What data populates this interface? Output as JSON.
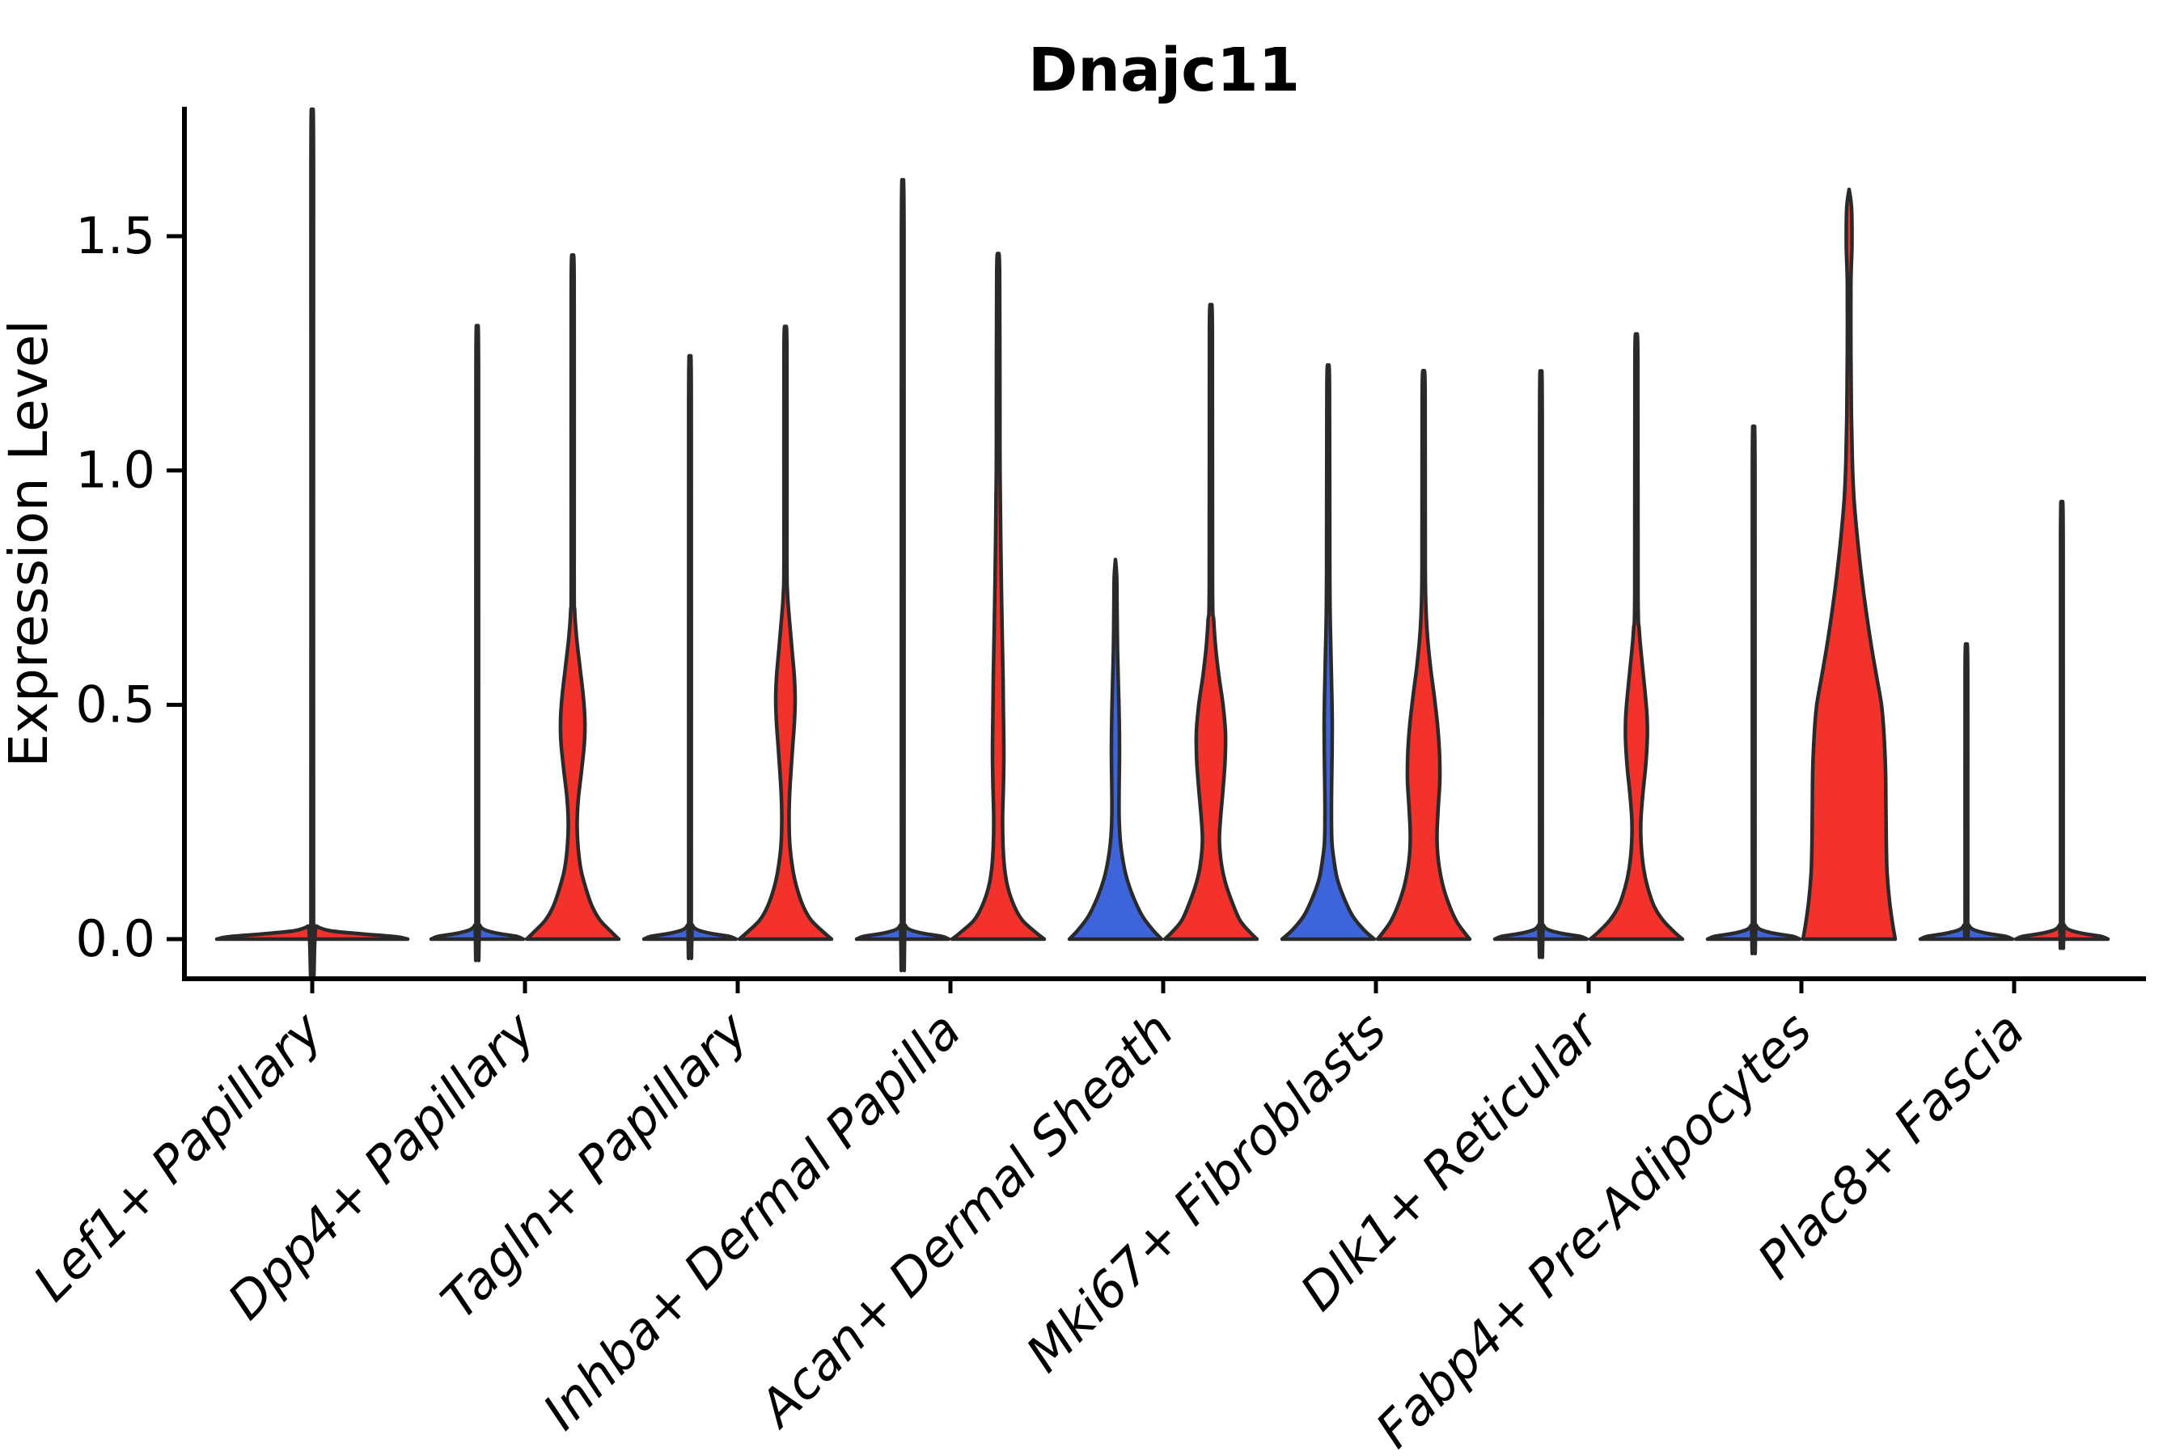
{
  "title": "Dnajc11",
  "ylabel": "Expression Level",
  "chart_data": {
    "type": "violin",
    "title": "Dnajc11",
    "xlabel": "",
    "ylabel": "Expression Level",
    "ylim": [
      0,
      1.75
    ],
    "grid": false,
    "legend": "none",
    "ytick_labels": [
      "0.0",
      "0.5",
      "1.0",
      "1.5"
    ],
    "ytick_values": [
      0,
      0.5,
      1.0,
      1.5
    ],
    "categories": [
      "Lef1+ Papillary",
      "Dpp4+ Papillary",
      "Tagln+ Papillary",
      "Inhba+ Dermal Papilla",
      "Acan+ Dermal Sheath",
      "Mki67+ Fibroblasts",
      "Dlk1+ Reticular",
      "Fabp4+ Pre-Adipocytes",
      "Plac8+ Fascia"
    ],
    "colors": {
      "red": "#F2322B",
      "blue": "#3D64DB",
      "outline": "#2a2a2a"
    },
    "violins": [
      {
        "category_index": 0,
        "category": "Lef1+ Papillary",
        "side": "single",
        "color": "red",
        "max_expression": 1.68,
        "profile": [
          [
            0,
            118
          ],
          [
            0.005,
            104
          ],
          [
            0.011,
            62
          ],
          [
            0.018,
            22
          ],
          [
            0.028,
            5
          ],
          [
            0.042,
            1.6
          ],
          [
            1.64,
            1.6
          ],
          [
            1.68,
            0
          ]
        ]
      },
      {
        "category_index": 1,
        "category": "Dpp4+ Papillary",
        "side": "left",
        "color": "blue",
        "max_expression": 1.25,
        "profile": [
          [
            0,
            57
          ],
          [
            0.006,
            48
          ],
          [
            0.012,
            26
          ],
          [
            0.02,
            9
          ],
          [
            0.03,
            3
          ],
          [
            0.045,
            1.6
          ],
          [
            1.21,
            1.6
          ],
          [
            1.25,
            0
          ]
        ]
      },
      {
        "category_index": 1,
        "category": "Dpp4+ Papillary",
        "side": "right",
        "color": "red",
        "max_expression": 1.44,
        "profile": [
          [
            0,
            57
          ],
          [
            0.015,
            48
          ],
          [
            0.04,
            34
          ],
          [
            0.07,
            24
          ],
          [
            0.11,
            16
          ],
          [
            0.15,
            10
          ],
          [
            0.2,
            6.5
          ],
          [
            0.25,
            5.5
          ],
          [
            0.3,
            7
          ],
          [
            0.36,
            11
          ],
          [
            0.42,
            14.5
          ],
          [
            0.47,
            15
          ],
          [
            0.52,
            13
          ],
          [
            0.58,
            9
          ],
          [
            0.64,
            5
          ],
          [
            0.7,
            2.5
          ],
          [
            0.78,
            1.8
          ],
          [
            1.4,
            1.8
          ],
          [
            1.44,
            0
          ]
        ]
      },
      {
        "category_index": 2,
        "category": "Tagln+ Papillary",
        "side": "left",
        "color": "blue",
        "max_expression": 1.19,
        "profile": [
          [
            0,
            57
          ],
          [
            0.006,
            48
          ],
          [
            0.012,
            26
          ],
          [
            0.02,
            9
          ],
          [
            0.03,
            3
          ],
          [
            0.045,
            1.6
          ],
          [
            1.15,
            1.6
          ],
          [
            1.19,
            0
          ]
        ]
      },
      {
        "category_index": 2,
        "category": "Tagln+ Papillary",
        "side": "right",
        "color": "red",
        "max_expression": 1.3,
        "profile": [
          [
            0,
            57
          ],
          [
            0.015,
            47
          ],
          [
            0.04,
            32
          ],
          [
            0.07,
            22
          ],
          [
            0.11,
            14
          ],
          [
            0.15,
            9
          ],
          [
            0.2,
            5.5
          ],
          [
            0.26,
            4.5
          ],
          [
            0.32,
            5.5
          ],
          [
            0.4,
            8.5
          ],
          [
            0.46,
            11
          ],
          [
            0.51,
            12
          ],
          [
            0.56,
            11
          ],
          [
            0.62,
            8
          ],
          [
            0.68,
            5
          ],
          [
            0.74,
            2.5
          ],
          [
            0.82,
            1.8
          ],
          [
            1.26,
            1.8
          ],
          [
            1.3,
            0
          ]
        ]
      },
      {
        "category_index": 3,
        "category": "Inhba+ Dermal Papilla",
        "side": "left",
        "color": "blue",
        "max_expression": 1.54,
        "profile": [
          [
            0,
            57
          ],
          [
            0.006,
            48
          ],
          [
            0.012,
            26
          ],
          [
            0.02,
            9
          ],
          [
            0.03,
            3
          ],
          [
            0.045,
            1.6
          ],
          [
            1.5,
            1.6
          ],
          [
            1.54,
            0
          ]
        ]
      },
      {
        "category_index": 3,
        "category": "Inhba+ Dermal Papilla",
        "side": "right",
        "color": "red",
        "max_expression": 1.46,
        "profile": [
          [
            0,
            57
          ],
          [
            0.015,
            46
          ],
          [
            0.04,
            30
          ],
          [
            0.07,
            20
          ],
          [
            0.11,
            12
          ],
          [
            0.15,
            8
          ],
          [
            0.2,
            6
          ],
          [
            0.26,
            5.5
          ],
          [
            0.33,
            6.5
          ],
          [
            0.4,
            7
          ],
          [
            0.48,
            6.5
          ],
          [
            0.56,
            6
          ],
          [
            0.65,
            5
          ],
          [
            0.75,
            4
          ],
          [
            0.85,
            3.2
          ],
          [
            0.95,
            2.6
          ],
          [
            1.05,
            2.2
          ],
          [
            1.42,
            1.8
          ],
          [
            1.46,
            0
          ]
        ]
      },
      {
        "category_index": 4,
        "category": "Acan+ Dermal Sheath",
        "side": "left",
        "color": "blue",
        "max_expression": 0.81,
        "profile": [
          [
            0,
            57
          ],
          [
            0.02,
            46
          ],
          [
            0.05,
            33
          ],
          [
            0.09,
            22
          ],
          [
            0.13,
            14
          ],
          [
            0.17,
            9
          ],
          [
            0.21,
            6
          ],
          [
            0.26,
            4.5
          ],
          [
            0.32,
            4.5
          ],
          [
            0.4,
            5
          ],
          [
            0.48,
            4.5
          ],
          [
            0.55,
            3.5
          ],
          [
            0.62,
            2.5
          ],
          [
            0.7,
            2
          ],
          [
            0.77,
            1.6
          ],
          [
            0.81,
            0
          ]
        ]
      },
      {
        "category_index": 4,
        "category": "Acan+ Dermal Sheath",
        "side": "right",
        "color": "red",
        "max_expression": 1.34,
        "profile": [
          [
            0,
            57
          ],
          [
            0.015,
            48
          ],
          [
            0.04,
            36
          ],
          [
            0.08,
            26
          ],
          [
            0.12,
            18
          ],
          [
            0.16,
            13
          ],
          [
            0.21,
            10.5
          ],
          [
            0.26,
            12
          ],
          [
            0.32,
            15
          ],
          [
            0.38,
            17.5
          ],
          [
            0.44,
            18
          ],
          [
            0.5,
            15
          ],
          [
            0.56,
            10
          ],
          [
            0.62,
            6
          ],
          [
            0.68,
            3.5
          ],
          [
            0.76,
            2
          ],
          [
            1.3,
            1.8
          ],
          [
            1.34,
            0
          ]
        ]
      },
      {
        "category_index": 5,
        "category": "Mki67+ Fibroblasts",
        "side": "left",
        "color": "blue",
        "max_expression": 1.22,
        "profile": [
          [
            0,
            57
          ],
          [
            0.02,
            44
          ],
          [
            0.05,
            30
          ],
          [
            0.09,
            19
          ],
          [
            0.13,
            11
          ],
          [
            0.17,
            7
          ],
          [
            0.21,
            4.5
          ],
          [
            0.28,
            4
          ],
          [
            0.36,
            4.5
          ],
          [
            0.45,
            5
          ],
          [
            0.52,
            4.5
          ],
          [
            0.6,
            3.5
          ],
          [
            0.68,
            2.5
          ],
          [
            0.78,
            2
          ],
          [
            1.18,
            1.6
          ],
          [
            1.22,
            0
          ]
        ]
      },
      {
        "category_index": 5,
        "category": "Mki67+ Fibroblasts",
        "side": "right",
        "color": "red",
        "max_expression": 1.21,
        "profile": [
          [
            0,
            57
          ],
          [
            0.015,
            50
          ],
          [
            0.04,
            40
          ],
          [
            0.08,
            30
          ],
          [
            0.12,
            23
          ],
          [
            0.17,
            18
          ],
          [
            0.22,
            16.5
          ],
          [
            0.28,
            18
          ],
          [
            0.34,
            20
          ],
          [
            0.4,
            19.5
          ],
          [
            0.46,
            17
          ],
          [
            0.52,
            13
          ],
          [
            0.58,
            8.5
          ],
          [
            0.64,
            5
          ],
          [
            0.7,
            3
          ],
          [
            0.8,
            2
          ],
          [
            1.17,
            1.8
          ],
          [
            1.21,
            0
          ]
        ]
      },
      {
        "category_index": 6,
        "category": "Dlk1+ Reticular",
        "side": "left",
        "color": "blue",
        "max_expression": 1.16,
        "profile": [
          [
            0,
            57
          ],
          [
            0.006,
            48
          ],
          [
            0.012,
            26
          ],
          [
            0.02,
            9
          ],
          [
            0.03,
            3
          ],
          [
            0.045,
            1.6
          ],
          [
            1.12,
            1.6
          ],
          [
            1.16,
            0
          ]
        ]
      },
      {
        "category_index": 6,
        "category": "Dlk1+ Reticular",
        "side": "right",
        "color": "red",
        "max_expression": 1.28,
        "profile": [
          [
            0,
            57
          ],
          [
            0.015,
            47
          ],
          [
            0.04,
            33
          ],
          [
            0.07,
            22
          ],
          [
            0.11,
            14
          ],
          [
            0.15,
            9
          ],
          [
            0.2,
            6
          ],
          [
            0.25,
            5.5
          ],
          [
            0.31,
            8
          ],
          [
            0.37,
            11.5
          ],
          [
            0.43,
            13.5
          ],
          [
            0.48,
            13
          ],
          [
            0.54,
            10
          ],
          [
            0.6,
            6.5
          ],
          [
            0.66,
            3.5
          ],
          [
            0.74,
            2
          ],
          [
            1.24,
            1.8
          ],
          [
            1.28,
            0
          ]
        ]
      },
      {
        "category_index": 7,
        "category": "Fabp4+ Pre-Adipocytes",
        "side": "left",
        "color": "blue",
        "max_expression": 1.05,
        "profile": [
          [
            0,
            57
          ],
          [
            0.006,
            48
          ],
          [
            0.012,
            26
          ],
          [
            0.02,
            9
          ],
          [
            0.03,
            3
          ],
          [
            0.045,
            1.6
          ],
          [
            1.01,
            1.6
          ],
          [
            1.05,
            0
          ]
        ]
      },
      {
        "category_index": 7,
        "category": "Fabp4+ Pre-Adipocytes",
        "side": "right",
        "color": "red",
        "max_expression": 1.6,
        "profile": [
          [
            0,
            57
          ],
          [
            0.03,
            54
          ],
          [
            0.08,
            50
          ],
          [
            0.14,
            47
          ],
          [
            0.2,
            46
          ],
          [
            0.28,
            45.5
          ],
          [
            0.36,
            45
          ],
          [
            0.44,
            43
          ],
          [
            0.5,
            40
          ],
          [
            0.56,
            34
          ],
          [
            0.62,
            28
          ],
          [
            0.7,
            21
          ],
          [
            0.78,
            15
          ],
          [
            0.86,
            10
          ],
          [
            0.94,
            6
          ],
          [
            1.02,
            4
          ],
          [
            1.12,
            2.8
          ],
          [
            1.25,
            2.2
          ],
          [
            1.4,
            2.2
          ],
          [
            1.48,
            3.5
          ],
          [
            1.56,
            3
          ],
          [
            1.6,
            0
          ]
        ]
      },
      {
        "category_index": 8,
        "category": "Plac8+ Fascia",
        "side": "left",
        "color": "blue",
        "max_expression": 0.61,
        "profile": [
          [
            0,
            57
          ],
          [
            0.006,
            48
          ],
          [
            0.012,
            26
          ],
          [
            0.02,
            9
          ],
          [
            0.03,
            3
          ],
          [
            0.045,
            1.6
          ],
          [
            0.58,
            1.6
          ],
          [
            0.61,
            0
          ]
        ]
      },
      {
        "category_index": 8,
        "category": "Plac8+ Fascia",
        "side": "right",
        "color": "red",
        "max_expression": 0.9,
        "profile": [
          [
            0,
            57
          ],
          [
            0.006,
            48
          ],
          [
            0.012,
            26
          ],
          [
            0.02,
            9
          ],
          [
            0.03,
            3
          ],
          [
            0.045,
            1.6
          ],
          [
            0.86,
            1.6
          ],
          [
            0.9,
            0
          ]
        ]
      }
    ]
  }
}
